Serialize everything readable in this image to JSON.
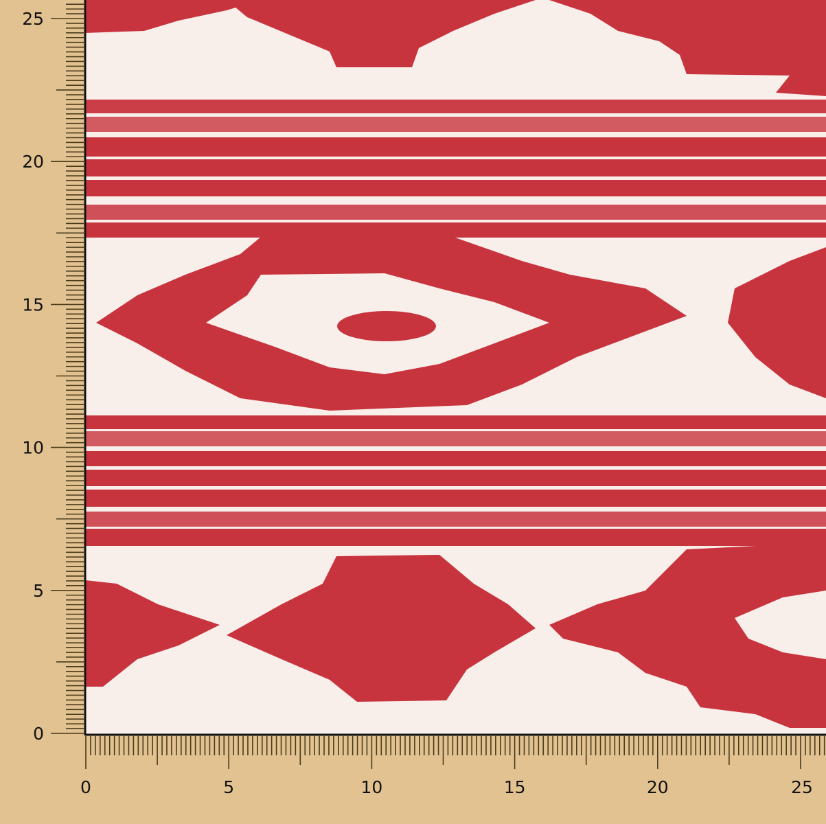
{
  "image": {
    "subject": "red and white ikat-pattern fabric swatch with measurement rulers",
    "background_color": "#e2c290",
    "fabric_base_color": "#f8eeea",
    "pattern_color": "#c8343e"
  },
  "ruler_left": {
    "labels": [
      "0",
      "5",
      "10",
      "15",
      "20",
      "25"
    ],
    "range": [
      0,
      25.8
    ]
  },
  "ruler_bottom": {
    "labels": [
      "0",
      "5",
      "10",
      "15",
      "20",
      "25"
    ],
    "range": [
      0,
      25.8
    ]
  }
}
